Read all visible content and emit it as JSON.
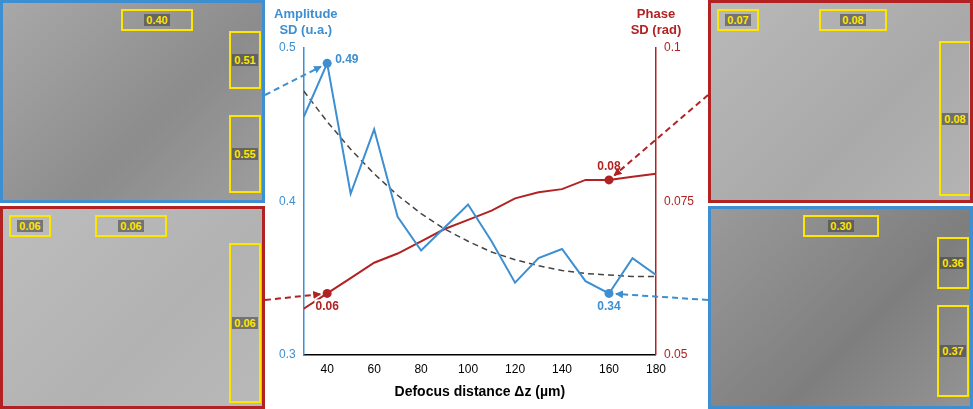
{
  "chart_data": {
    "type": "line",
    "xlabel": "Defocus distance Δz (µm)",
    "ylabel": "Amplitude SD (u.a.)",
    "y2label": "Phase SD (rad)",
    "x": [
      30,
      40,
      50,
      60,
      70,
      80,
      90,
      100,
      110,
      120,
      130,
      140,
      150,
      160,
      170,
      180
    ],
    "series": [
      {
        "color": "#3d8fd1",
        "line_style": "solid",
        "marker": "none",
        "values": [
          0.455,
          0.49,
          0.405,
          0.447,
          0.39,
          0.368,
          0.383,
          0.398,
          0.374,
          0.347,
          0.363,
          0.369,
          0.348,
          0.34,
          0.363,
          0.352
        ]
      },
      {
        "color": "#444444",
        "line_style": "dashed",
        "marker": "none",
        "values": [
          0.472,
          0.452,
          0.434,
          0.418,
          0.404,
          0.392,
          0.382,
          0.374,
          0.367,
          0.362,
          0.358,
          0.355,
          0.353,
          0.352,
          0.351,
          0.351
        ]
      },
      {
        "color": "#b22222",
        "line_style": "solid",
        "marker": "none",
        "axis": "y2",
        "values": [
          0.0575,
          0.06,
          0.0625,
          0.065,
          0.0665,
          0.0685,
          0.0705,
          0.072,
          0.0735,
          0.0755,
          0.0765,
          0.077,
          0.0785,
          0.0785,
          0.079,
          0.0795
        ]
      }
    ],
    "xlim": [
      30,
      180
    ],
    "xticks": [
      40,
      60,
      80,
      100,
      120,
      140,
      160,
      180
    ],
    "ylim": [
      0.3,
      0.5
    ],
    "yticks": [
      0.3,
      0.4,
      0.5
    ],
    "y2lim": [
      0.05,
      0.1
    ],
    "y2ticks": [
      0.05,
      0.075,
      0.1
    ],
    "grid": false,
    "annotations": [
      {
        "series": 0,
        "x": 40,
        "label": "0.49"
      },
      {
        "series": 0,
        "x": 160,
        "label": "0.34"
      },
      {
        "series": 2,
        "x": 40,
        "label": "0.06"
      },
      {
        "series": 2,
        "x": 160,
        "label": "0.08"
      }
    ]
  },
  "panels": [
    {
      "color": "#3d8fd1",
      "points_to": 0,
      "boxes": [
        "0.40",
        "0.51",
        "0.55"
      ]
    },
    {
      "color": "#b22222",
      "points_to": 2,
      "boxes": [
        "0.06",
        "0.06",
        "0.06"
      ]
    },
    {
      "color": "#b22222",
      "points_to": 3,
      "boxes": [
        "0.07",
        "0.08",
        "0.08"
      ]
    },
    {
      "color": "#3d8fd1",
      "points_to": 1,
      "boxes": [
        "0.30",
        "0.36",
        "0.37"
      ]
    }
  ]
}
